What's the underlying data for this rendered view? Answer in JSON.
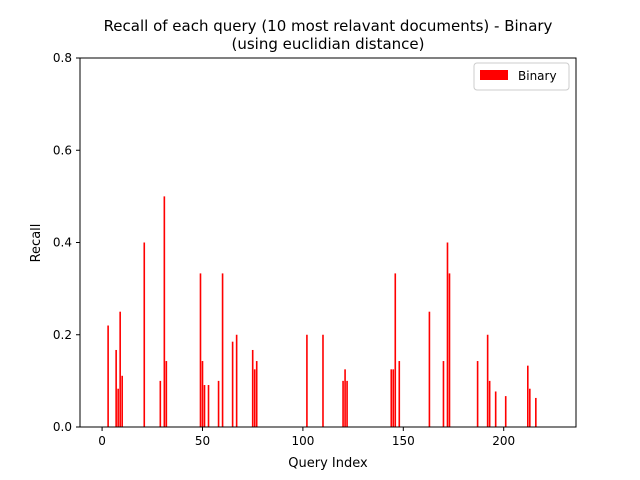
{
  "chart_data": {
    "type": "bar",
    "title_lines": [
      "Recall of each query (10 most relavant documents) - Binary",
      "(using euclidian distance)"
    ],
    "xlabel": "Query Index",
    "ylabel": "Recall",
    "xlim": [
      -11,
      236
    ],
    "ylim": [
      0,
      0.8
    ],
    "xticks": [
      0,
      50,
      100,
      150,
      200
    ],
    "yticks": [
      "0.0",
      "0.2",
      "0.4",
      "0.6",
      "0.8"
    ],
    "legend_position": "top-right",
    "series": [
      {
        "name": "Binary",
        "color": "#ff0000",
        "x": [
          3,
          7,
          8,
          9,
          10,
          21,
          29,
          31,
          32,
          49,
          50,
          51,
          53,
          58,
          60,
          65,
          67,
          75,
          76,
          77,
          102,
          110,
          120,
          121,
          122,
          144,
          145,
          146,
          148,
          163,
          170,
          172,
          173,
          187,
          192,
          193,
          196,
          201,
          212,
          213,
          216
        ],
        "y": [
          0.22,
          0.167,
          0.083,
          0.25,
          0.111,
          0.4,
          0.1,
          0.5,
          0.143,
          0.333,
          0.143,
          0.091,
          0.091,
          0.1,
          0.333,
          0.185,
          0.2,
          0.167,
          0.125,
          0.143,
          0.2,
          0.2,
          0.1,
          0.125,
          0.1,
          0.125,
          0.125,
          0.333,
          0.143,
          0.25,
          0.143,
          0.4,
          0.333,
          0.143,
          0.2,
          0.1,
          0.077,
          0.067,
          0.133,
          0.083,
          0.063
        ]
      }
    ]
  }
}
